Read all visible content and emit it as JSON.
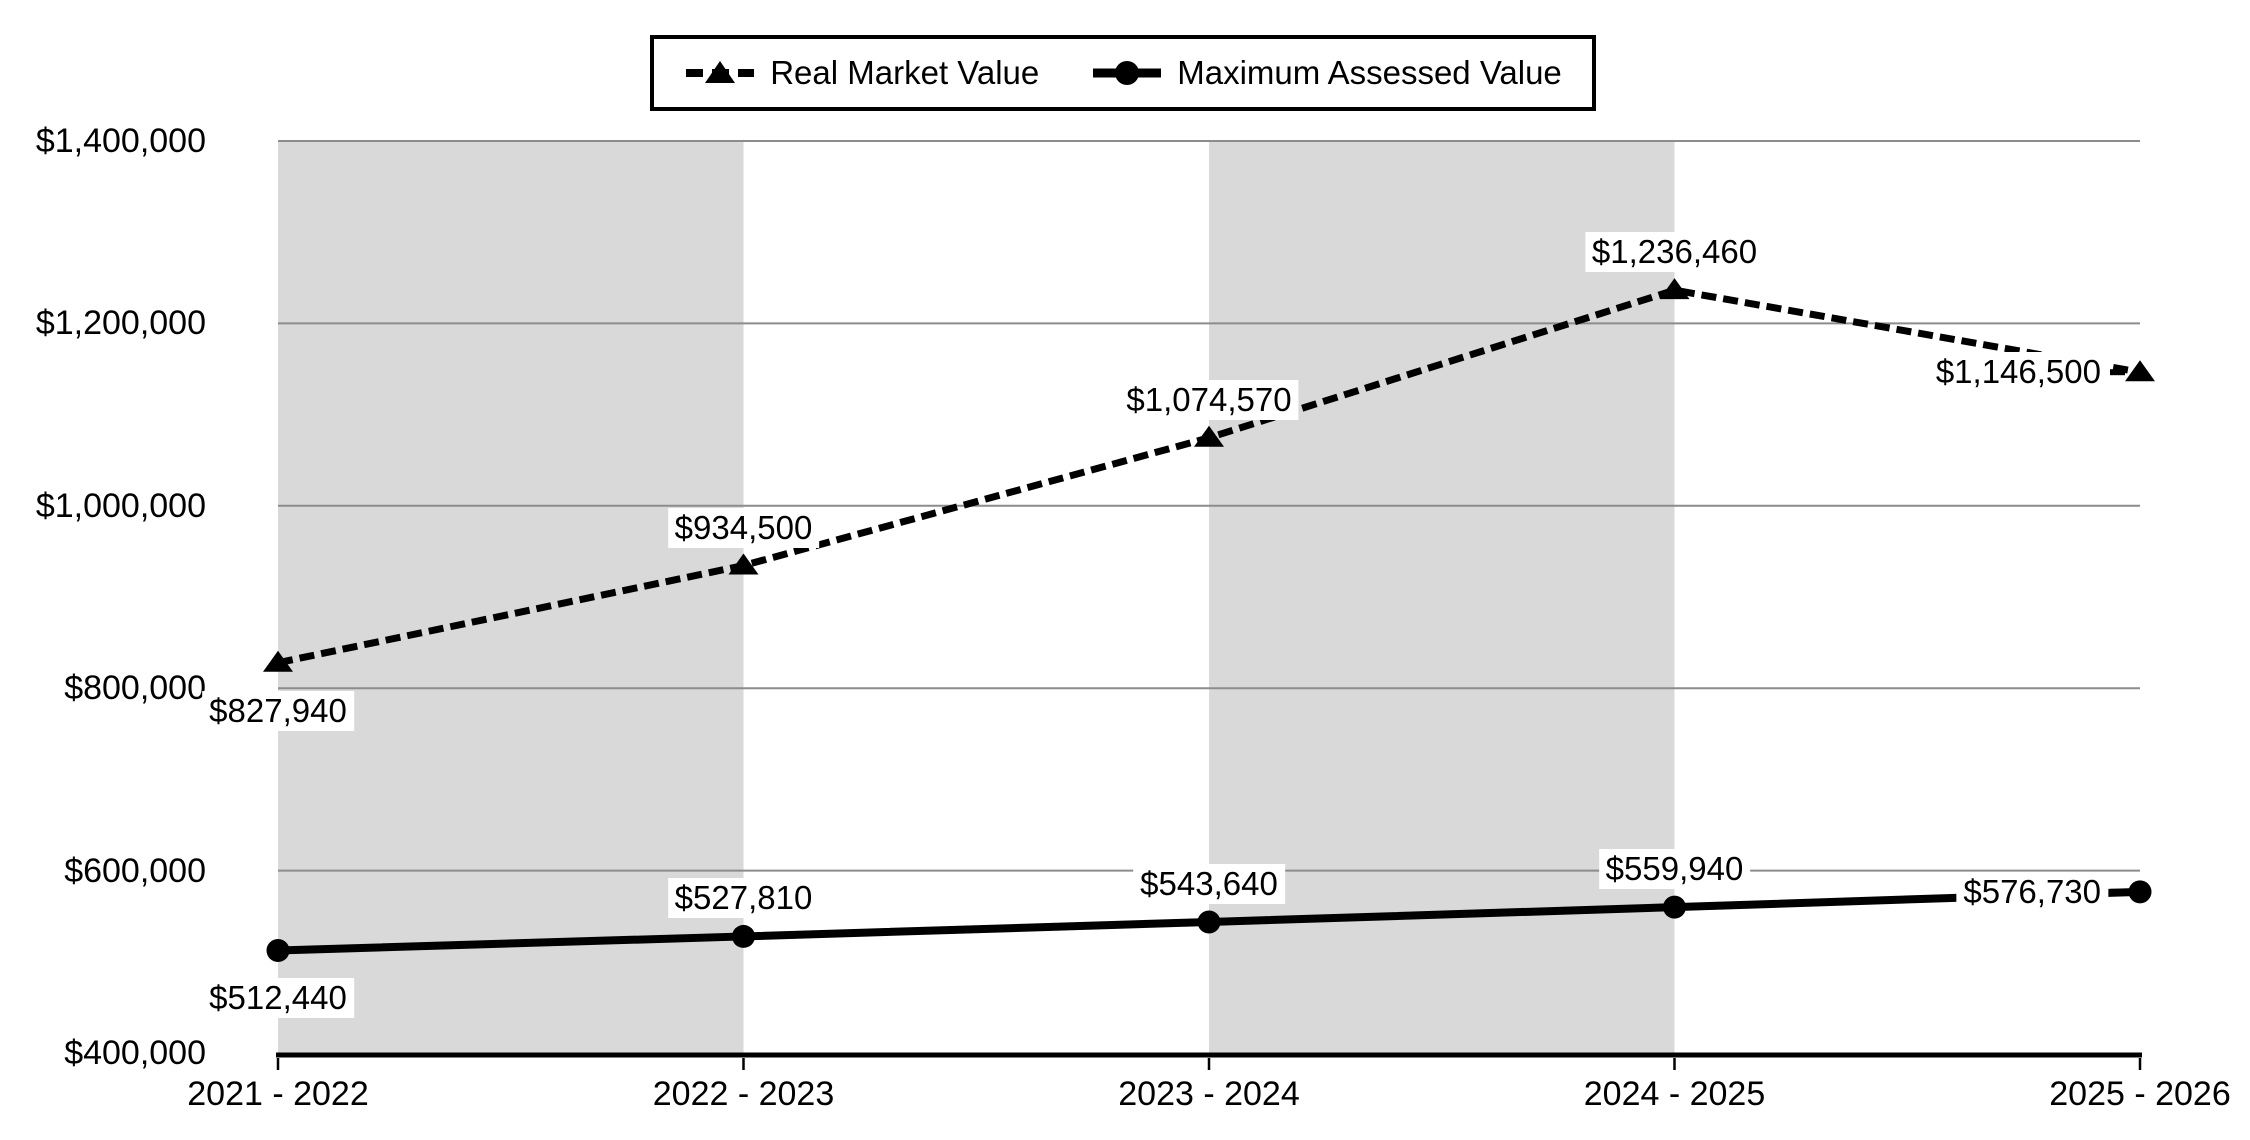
{
  "legend": {
    "position": "top",
    "items": [
      {
        "label": "Real Market Value",
        "marker": "triangle",
        "line_style": "dashed"
      },
      {
        "label": "Maximum Assessed Value",
        "marker": "circle",
        "line_style": "solid"
      }
    ]
  },
  "chart_data": {
    "type": "line",
    "title": "",
    "xlabel": "",
    "ylabel": "",
    "categories": [
      "2021 - 2022",
      "2022 - 2023",
      "2023 - 2024",
      "2024 - 2025",
      "2025 - 2026"
    ],
    "series": [
      {
        "name": "Real Market Value",
        "values": [
          827940,
          934500,
          1074570,
          1236460,
          1146500
        ],
        "labels": [
          "$827,940",
          "$934,500",
          "$1,074,570",
          "$1,236,460",
          "$1,146,500"
        ],
        "line_style": "dashed",
        "marker": "triangle",
        "label_placements": [
          "below",
          "above",
          "above",
          "above",
          "left"
        ]
      },
      {
        "name": "Maximum Assessed Value",
        "values": [
          512440,
          527810,
          543640,
          559940,
          576730
        ],
        "labels": [
          "$512,440",
          "$527,810",
          "$543,640",
          "$559,940",
          "$576,730"
        ],
        "line_style": "solid",
        "marker": "circle",
        "label_placements": [
          "below",
          "above",
          "above",
          "above",
          "left"
        ]
      }
    ],
    "ylim": [
      400000,
      1400000
    ],
    "ytick_step": 200000,
    "ytick_labels": [
      "$400,000",
      "$600,000",
      "$800,000",
      "$1,000,000",
      "$1,200,000",
      "$1,400,000"
    ],
    "grid": true,
    "legend_position": "top",
    "plot_bands": {
      "shaded_intervals": [
        0,
        2
      ],
      "color": "#d9d9d9"
    },
    "colors": {
      "series": "#000000",
      "gridline": "#8c8c8c",
      "axis": "#000000",
      "text": "#000000",
      "label_background": "#ffffff",
      "background": "#ffffff"
    }
  }
}
